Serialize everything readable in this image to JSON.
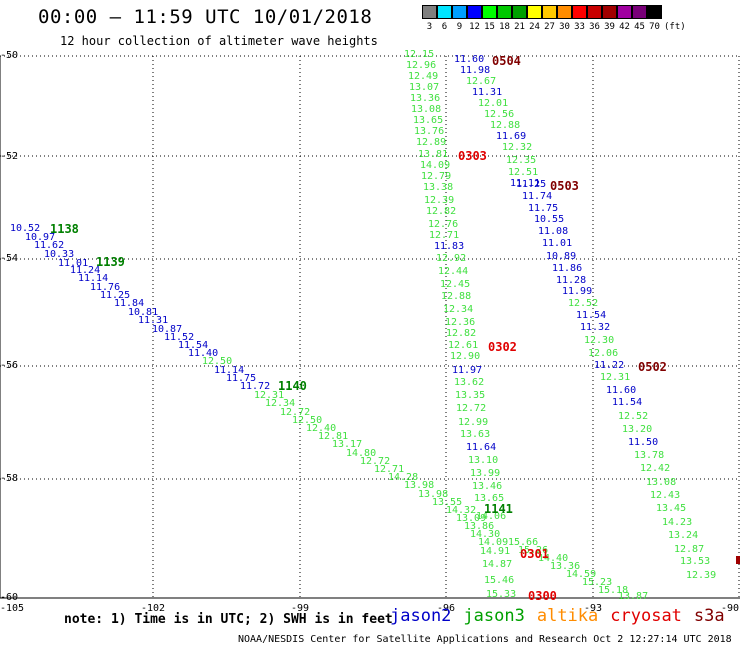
{
  "header": {
    "title": "00:00 — 11:59 UTC 10/01/2018",
    "subtitle": "12 hour collection of altimeter wave heights"
  },
  "legend": {
    "unit": "(ft)",
    "bins": [
      {
        "label": "3",
        "color": "#7f7f7f"
      },
      {
        "label": "6",
        "color": "#00e5ff"
      },
      {
        "label": "9",
        "color": "#00a0ff"
      },
      {
        "label": "12",
        "color": "#0000ff"
      },
      {
        "label": "15",
        "color": "#00ff00"
      },
      {
        "label": "18",
        "color": "#00c800"
      },
      {
        "label": "21",
        "color": "#00a000"
      },
      {
        "label": "24",
        "color": "#ffff00"
      },
      {
        "label": "27",
        "color": "#ffc800"
      },
      {
        "label": "30",
        "color": "#ff8c00"
      },
      {
        "label": "33",
        "color": "#ff0000"
      },
      {
        "label": "36",
        "color": "#c80000"
      },
      {
        "label": "39",
        "color": "#a00000"
      },
      {
        "label": "42",
        "color": "#a000a0"
      },
      {
        "label": "45",
        "color": "#780078"
      },
      {
        "label": "70",
        "color": "#000000"
      }
    ]
  },
  "axes": {
    "y_labels": [
      "-50",
      "-52",
      "-54",
      "-56",
      "-58",
      "-60"
    ],
    "x_labels": [
      "-105",
      "-102",
      "-99",
      "-96",
      "-93",
      "-90"
    ]
  },
  "note": "note: 1) Time is in UTC; 2) SWH is in feet",
  "satellites": [
    {
      "name": "jason2",
      "color": "#0000c8"
    },
    {
      "name": "jason3",
      "color": "#00a000"
    },
    {
      "name": "altika",
      "color": "#ff8c00"
    },
    {
      "name": "cryosat",
      "color": "#e00000"
    },
    {
      "name": "s3a",
      "color": "#800000"
    }
  ],
  "credit": "NOAA/NESDIS Center for Satellite Applications and Research   Oct  2 12:27:14 UTC 2018",
  "colors": {
    "blue": "#0000c8",
    "green": "#40e040",
    "darkgreen": "#008000",
    "red": "#e00000",
    "maroon": "#800000"
  },
  "track_times": [
    {
      "text": "1138",
      "color": "darkgreen"
    },
    {
      "text": "1139",
      "color": "darkgreen"
    },
    {
      "text": "1140",
      "color": "darkgreen"
    },
    {
      "text": "1141",
      "color": "darkgreen"
    },
    {
      "text": "0504",
      "color": "maroon"
    },
    {
      "text": "0303",
      "color": "red"
    },
    {
      "text": "0503",
      "color": "maroon"
    },
    {
      "text": "0302",
      "color": "red"
    },
    {
      "text": "0502",
      "color": "maroon"
    },
    {
      "text": "0301",
      "color": "red"
    },
    {
      "text": "0300",
      "color": "red"
    }
  ],
  "points": [
    {
      "v": "10.52",
      "c": "blue"
    },
    {
      "v": "10.97",
      "c": "blue"
    },
    {
      "v": "11.62",
      "c": "blue"
    },
    {
      "v": "10.33",
      "c": "blue"
    },
    {
      "v": "11.01",
      "c": "blue"
    },
    {
      "v": "11.24",
      "c": "blue"
    },
    {
      "v": "11.14",
      "c": "blue"
    },
    {
      "v": "11.76",
      "c": "blue"
    },
    {
      "v": "11.25",
      "c": "blue"
    },
    {
      "v": "11.84",
      "c": "blue"
    },
    {
      "v": "10.81",
      "c": "blue"
    },
    {
      "v": "11.31",
      "c": "blue"
    },
    {
      "v": "10.87",
      "c": "blue"
    },
    {
      "v": "11.52",
      "c": "blue"
    },
    {
      "v": "11.54",
      "c": "blue"
    },
    {
      "v": "11.40",
      "c": "blue"
    },
    {
      "v": "12.50",
      "c": "green"
    },
    {
      "v": "11.14",
      "c": "blue"
    },
    {
      "v": "11.75",
      "c": "blue"
    },
    {
      "v": "11.72",
      "c": "blue"
    },
    {
      "v": "12.31",
      "c": "green"
    },
    {
      "v": "12.34",
      "c": "green"
    },
    {
      "v": "12.72",
      "c": "green"
    },
    {
      "v": "12.50",
      "c": "green"
    },
    {
      "v": "12.40",
      "c": "green"
    },
    {
      "v": "12.81",
      "c": "green"
    },
    {
      "v": "13.17",
      "c": "green"
    },
    {
      "v": "14.80",
      "c": "green"
    },
    {
      "v": "12.72",
      "c": "green"
    },
    {
      "v": "12.71",
      "c": "green"
    },
    {
      "v": "14.28",
      "c": "green"
    },
    {
      "v": "13.98",
      "c": "green"
    },
    {
      "v": "13.98",
      "c": "green"
    },
    {
      "v": "13.55",
      "c": "green"
    },
    {
      "v": "14.32",
      "c": "green"
    },
    {
      "v": "13.09",
      "c": "green"
    },
    {
      "v": "13.86",
      "c": "green"
    },
    {
      "v": "14.30",
      "c": "green"
    },
    {
      "v": "14.09",
      "c": "green"
    },
    {
      "v": "15.66",
      "c": "green"
    },
    {
      "v": "15.26",
      "c": "green"
    },
    {
      "v": "14.40",
      "c": "green"
    },
    {
      "v": "13.36",
      "c": "green"
    },
    {
      "v": "14.59",
      "c": "green"
    },
    {
      "v": "15.23",
      "c": "green"
    },
    {
      "v": "15.18",
      "c": "green"
    },
    {
      "v": "13.87",
      "c": "green"
    },
    {
      "v": "12.15",
      "c": "green"
    },
    {
      "v": "12.96",
      "c": "green"
    },
    {
      "v": "12.49",
      "c": "green"
    },
    {
      "v": "13.07",
      "c": "green"
    },
    {
      "v": "13.36",
      "c": "green"
    },
    {
      "v": "13.08",
      "c": "green"
    },
    {
      "v": "13.65",
      "c": "green"
    },
    {
      "v": "13.76",
      "c": "green"
    },
    {
      "v": "12.89",
      "c": "green"
    },
    {
      "v": "13.81",
      "c": "green"
    },
    {
      "v": "14.09",
      "c": "green"
    },
    {
      "v": "12.79",
      "c": "green"
    },
    {
      "v": "13.38",
      "c": "green"
    },
    {
      "v": "12.39",
      "c": "green"
    },
    {
      "v": "12.82",
      "c": "green"
    },
    {
      "v": "12.76",
      "c": "green"
    },
    {
      "v": "12.71",
      "c": "green"
    },
    {
      "v": "11.83",
      "c": "blue"
    },
    {
      "v": "12.92",
      "c": "green"
    },
    {
      "v": "12.44",
      "c": "green"
    },
    {
      "v": "12.45",
      "c": "green"
    },
    {
      "v": "12.88",
      "c": "green"
    },
    {
      "v": "12.34",
      "c": "green"
    },
    {
      "v": "12.36",
      "c": "green"
    },
    {
      "v": "12.82",
      "c": "green"
    },
    {
      "v": "12.61",
      "c": "green"
    },
    {
      "v": "12.90",
      "c": "green"
    },
    {
      "v": "11.97",
      "c": "blue"
    },
    {
      "v": "13.62",
      "c": "green"
    },
    {
      "v": "13.35",
      "c": "green"
    },
    {
      "v": "12.72",
      "c": "green"
    },
    {
      "v": "12.99",
      "c": "green"
    },
    {
      "v": "13.63",
      "c": "green"
    },
    {
      "v": "11.64",
      "c": "blue"
    },
    {
      "v": "13.10",
      "c": "green"
    },
    {
      "v": "13.99",
      "c": "green"
    },
    {
      "v": "13.46",
      "c": "green"
    },
    {
      "v": "13.65",
      "c": "green"
    },
    {
      "v": "14.06",
      "c": "green"
    },
    {
      "v": "14.91",
      "c": "green"
    },
    {
      "v": "14.87",
      "c": "green"
    },
    {
      "v": "15.46",
      "c": "green"
    },
    {
      "v": "15.33",
      "c": "green"
    },
    {
      "v": "11.60",
      "c": "blue"
    },
    {
      "v": "11.98",
      "c": "blue"
    },
    {
      "v": "12.67",
      "c": "green"
    },
    {
      "v": "11.31",
      "c": "blue"
    },
    {
      "v": "12.01",
      "c": "green"
    },
    {
      "v": "12.56",
      "c": "green"
    },
    {
      "v": "12.88",
      "c": "green"
    },
    {
      "v": "11.69",
      "c": "blue"
    },
    {
      "v": "12.32",
      "c": "green"
    },
    {
      "v": "12.35",
      "c": "green"
    },
    {
      "v": "12.51",
      "c": "green"
    },
    {
      "v": "11.11",
      "c": "blue"
    },
    {
      "v": "11.25",
      "c": "blue"
    },
    {
      "v": "11.74",
      "c": "blue"
    },
    {
      "v": "11.75",
      "c": "blue"
    },
    {
      "v": "10.55",
      "c": "blue"
    },
    {
      "v": "11.08",
      "c": "blue"
    },
    {
      "v": "11.01",
      "c": "blue"
    },
    {
      "v": "10.89",
      "c": "blue"
    },
    {
      "v": "11.86",
      "c": "blue"
    },
    {
      "v": "11.28",
      "c": "blue"
    },
    {
      "v": "11.99",
      "c": "blue"
    },
    {
      "v": "12.52",
      "c": "green"
    },
    {
      "v": "11.54",
      "c": "blue"
    },
    {
      "v": "11.32",
      "c": "blue"
    },
    {
      "v": "12.30",
      "c": "green"
    },
    {
      "v": "12.06",
      "c": "green"
    },
    {
      "v": "11.22",
      "c": "blue"
    },
    {
      "v": "12.31",
      "c": "green"
    },
    {
      "v": "11.60",
      "c": "blue"
    },
    {
      "v": "11.54",
      "c": "blue"
    },
    {
      "v": "12.52",
      "c": "green"
    },
    {
      "v": "13.20",
      "c": "green"
    },
    {
      "v": "11.50",
      "c": "blue"
    },
    {
      "v": "13.78",
      "c": "green"
    },
    {
      "v": "12.42",
      "c": "green"
    },
    {
      "v": "13.08",
      "c": "green"
    },
    {
      "v": "12.43",
      "c": "green"
    },
    {
      "v": "13.45",
      "c": "green"
    },
    {
      "v": "14.23",
      "c": "green"
    },
    {
      "v": "13.24",
      "c": "green"
    },
    {
      "v": "12.87",
      "c": "green"
    },
    {
      "v": "13.53",
      "c": "green"
    },
    {
      "v": "12.39",
      "c": "green"
    }
  ]
}
